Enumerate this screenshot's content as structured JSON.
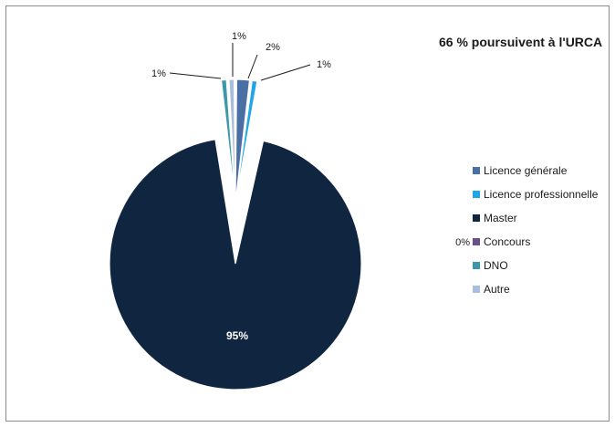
{
  "chart_data": {
    "type": "pie",
    "title": "66 % poursuivent à l'URCA",
    "legend_position": "right",
    "exploded": true,
    "slices": [
      {
        "label": "Licence générale",
        "value": 2,
        "display": "2%",
        "color": "#4a6fa5"
      },
      {
        "label": "Licence professionnelle",
        "value": 1,
        "display": "1%",
        "color": "#1fa6e6"
      },
      {
        "label": "Master",
        "value": 95,
        "display": "95%",
        "color": "#102540"
      },
      {
        "label": "Concours",
        "value": 0,
        "display": "0%",
        "color": "#6b4e8a"
      },
      {
        "label": "DNO",
        "value": 1,
        "display": "1%",
        "color": "#3d99a9"
      },
      {
        "label": "Autre",
        "value": 1,
        "display": "1%",
        "color": "#a9bedc"
      }
    ]
  }
}
